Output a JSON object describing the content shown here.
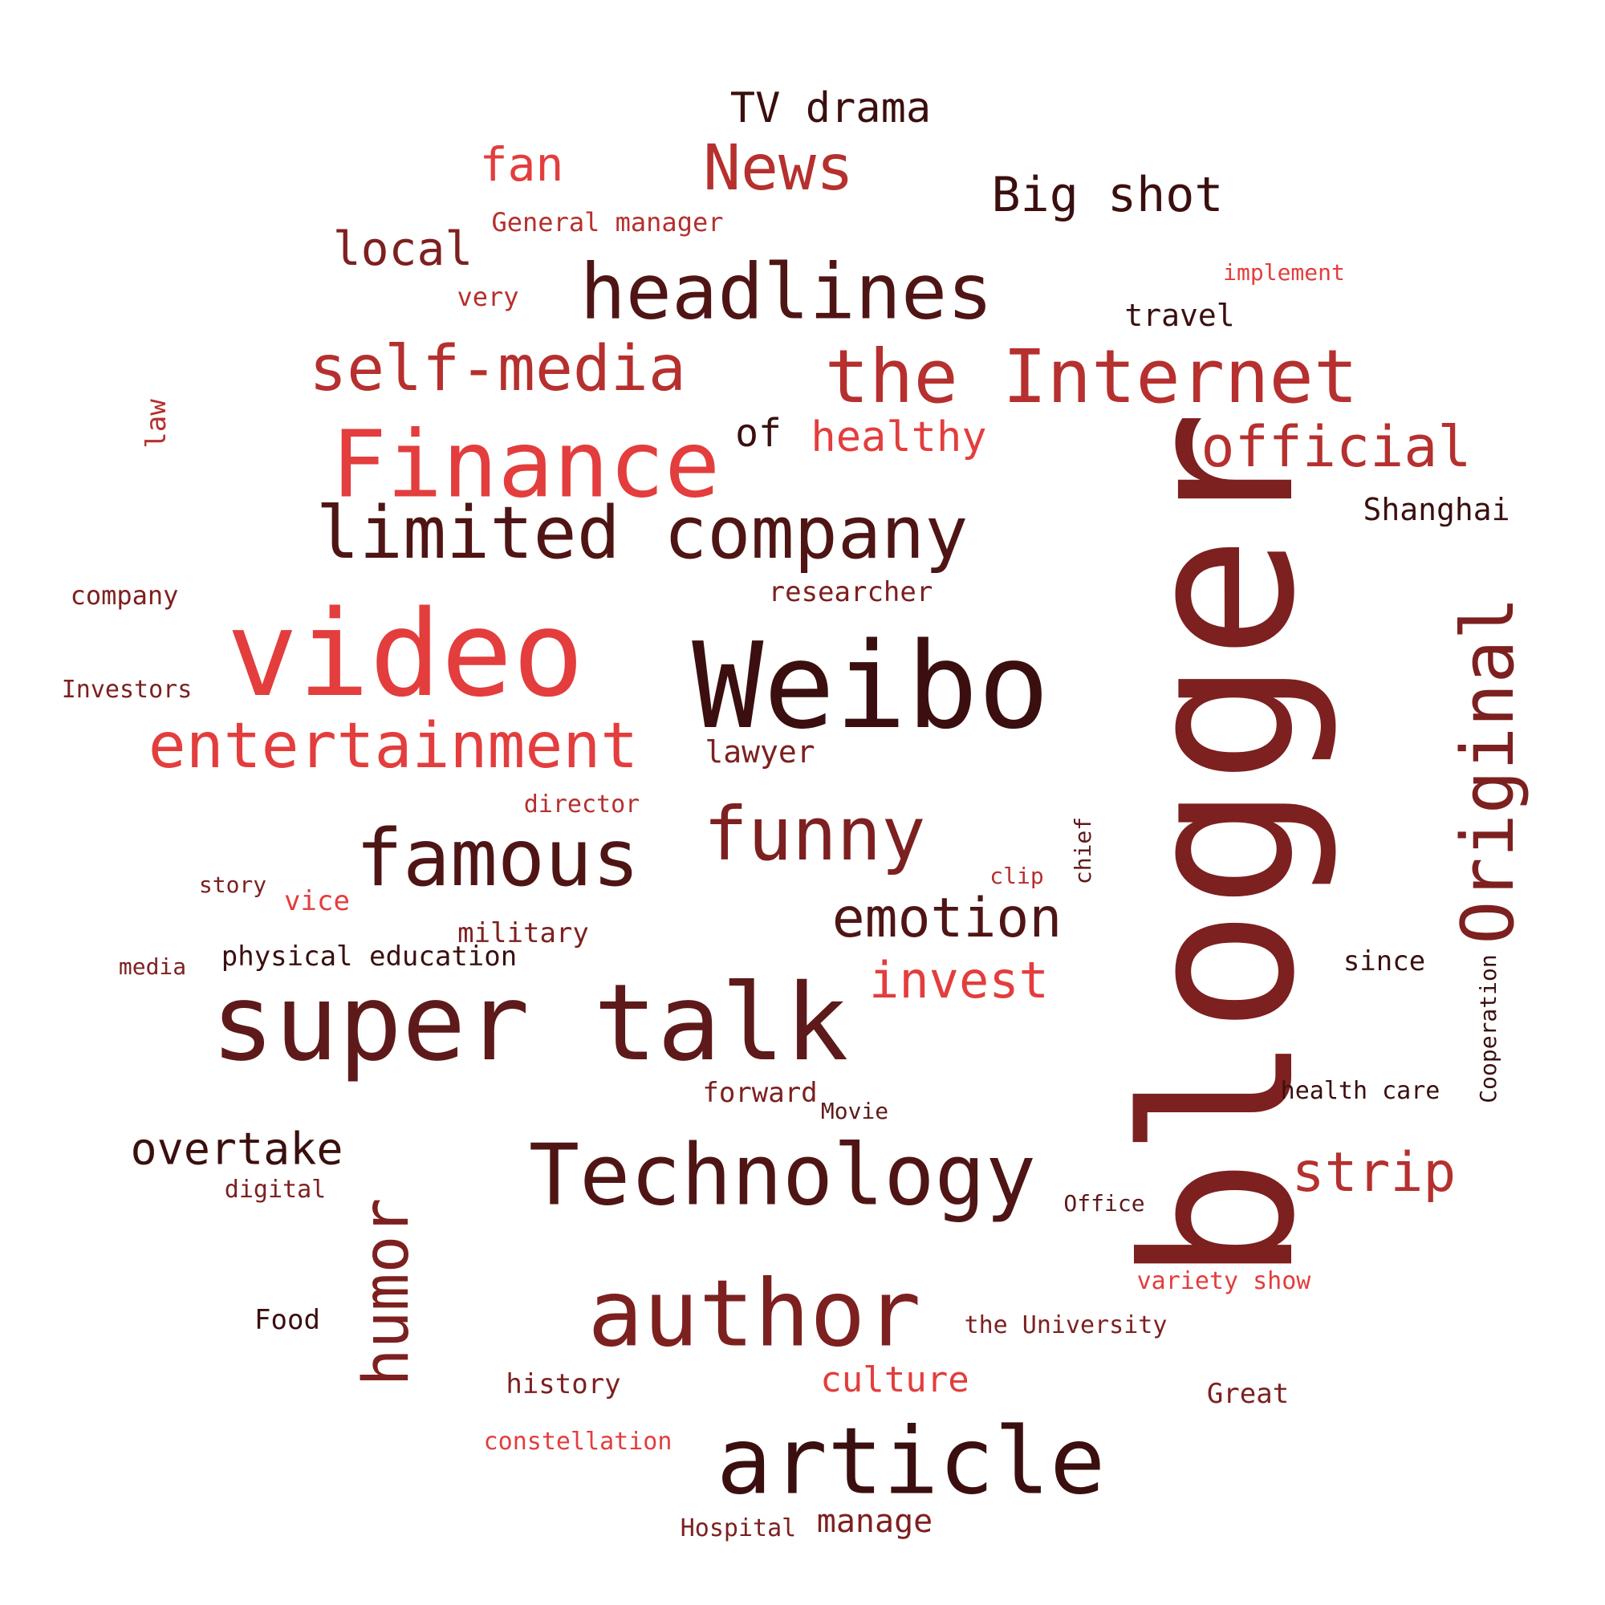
{
  "palette": {
    "darkest": "#3b0f0f",
    "dark": "#4f1515",
    "maroon": "#5e1a1a",
    "brick": "#7d2020",
    "red": "#b5302e",
    "bright": "#e33d3d"
  },
  "words": [
    {
      "text": "blogger",
      "color": "#7d2020",
      "vertical": true
    },
    {
      "text": "Weibo",
      "color": "#3b0f0f",
      "vertical": false
    },
    {
      "text": "video",
      "color": "#e33d3d",
      "vertical": false
    },
    {
      "text": "super talk",
      "color": "#5e1a1a",
      "vertical": false
    },
    {
      "text": "Finance",
      "color": "#e33d3d",
      "vertical": false
    },
    {
      "text": "article",
      "color": "#3b0f0f",
      "vertical": false
    },
    {
      "text": "author",
      "color": "#7d2020",
      "vertical": false
    },
    {
      "text": "Technology",
      "color": "#4f1515",
      "vertical": false
    },
    {
      "text": "headlines",
      "color": "#4f1515",
      "vertical": false
    },
    {
      "text": "the Internet",
      "color": "#b5302e",
      "vertical": false
    },
    {
      "text": "famous",
      "color": "#4f1515",
      "vertical": false
    },
    {
      "text": "limited company",
      "color": "#4f1515",
      "vertical": false
    },
    {
      "text": "self-media",
      "color": "#b5302e",
      "vertical": false
    },
    {
      "text": "entertainment",
      "color": "#e33d3d",
      "vertical": false
    },
    {
      "text": "Original",
      "color": "#7d2020",
      "vertical": true
    },
    {
      "text": "funny",
      "color": "#7d2020",
      "vertical": false
    },
    {
      "text": "News",
      "color": "#b5302e",
      "vertical": false
    },
    {
      "text": "official",
      "color": "#b5302e",
      "vertical": false
    },
    {
      "text": "humor",
      "color": "#7d2020",
      "vertical": true
    },
    {
      "text": "emotion",
      "color": "#4f1515",
      "vertical": false
    },
    {
      "text": "strip",
      "color": "#b5302e",
      "vertical": false
    },
    {
      "text": "invest",
      "color": "#e33d3d",
      "vertical": false
    },
    {
      "text": "Big shot",
      "color": "#3b0f0f",
      "vertical": false
    },
    {
      "text": "overtake",
      "color": "#3b0f0f",
      "vertical": false
    },
    {
      "text": "local",
      "color": "#7d2020",
      "vertical": false
    },
    {
      "text": "fan",
      "color": "#e33d3d",
      "vertical": false
    },
    {
      "text": "TV drama",
      "color": "#3b0f0f",
      "vertical": false
    },
    {
      "text": "healthy",
      "color": "#e33d3d",
      "vertical": false
    },
    {
      "text": "culture",
      "color": "#e33d3d",
      "vertical": false
    },
    {
      "text": "manage",
      "color": "#7d2020",
      "vertical": false
    },
    {
      "text": "of",
      "color": "#3b0f0f",
      "vertical": false
    },
    {
      "text": "Shanghai",
      "color": "#3b0f0f",
      "vertical": false
    },
    {
      "text": "travel",
      "color": "#3b0f0f",
      "vertical": false
    },
    {
      "text": "lawyer",
      "color": "#7d2020",
      "vertical": false
    },
    {
      "text": "researcher",
      "color": "#7d2020",
      "vertical": false
    },
    {
      "text": "company",
      "color": "#7d2020",
      "vertical": false
    },
    {
      "text": "physical education",
      "color": "#3b0f0f",
      "vertical": false
    },
    {
      "text": "military",
      "color": "#7d2020",
      "vertical": false
    },
    {
      "text": "history",
      "color": "#7d2020",
      "vertical": false
    },
    {
      "text": "forward",
      "color": "#7d2020",
      "vertical": false
    },
    {
      "text": "the University",
      "color": "#7d2020",
      "vertical": false
    },
    {
      "text": "Great",
      "color": "#7d2020",
      "vertical": false
    },
    {
      "text": "since",
      "color": "#3b0f0f",
      "vertical": false
    },
    {
      "text": "health care",
      "color": "#3b0f0f",
      "vertical": false
    },
    {
      "text": "General manager",
      "color": "#b5302e",
      "vertical": false
    },
    {
      "text": "vice",
      "color": "#e33d3d",
      "vertical": false
    },
    {
      "text": "constellation",
      "color": "#e33d3d",
      "vertical": false
    },
    {
      "text": "variety show",
      "color": "#e33d3d",
      "vertical": false
    },
    {
      "text": "Food",
      "color": "#3b0f0f",
      "vertical": false
    },
    {
      "text": "digital",
      "color": "#7d2020",
      "vertical": false
    },
    {
      "text": "very",
      "color": "#b5302e",
      "vertical": false
    },
    {
      "text": "Investors",
      "color": "#7d2020",
      "vertical": false
    },
    {
      "text": "director",
      "color": "#b5302e",
      "vertical": false
    },
    {
      "text": "story",
      "color": "#7d2020",
      "vertical": false
    },
    {
      "text": "media",
      "color": "#7d2020",
      "vertical": false
    },
    {
      "text": "Hospital",
      "color": "#7d2020",
      "vertical": false
    },
    {
      "text": "Office",
      "color": "#5e1a1a",
      "vertical": false
    },
    {
      "text": "Movie",
      "color": "#5e1a1a",
      "vertical": false
    },
    {
      "text": "clip",
      "color": "#b5302e",
      "vertical": false
    },
    {
      "text": "implement",
      "color": "#e33d3d",
      "vertical": false
    },
    {
      "text": "law",
      "color": "#b5302e",
      "vertical": true
    },
    {
      "text": "chief",
      "color": "#5e1a1a",
      "vertical": true
    },
    {
      "text": "Cooperation",
      "color": "#3b0f0f",
      "vertical": true
    }
  ]
}
